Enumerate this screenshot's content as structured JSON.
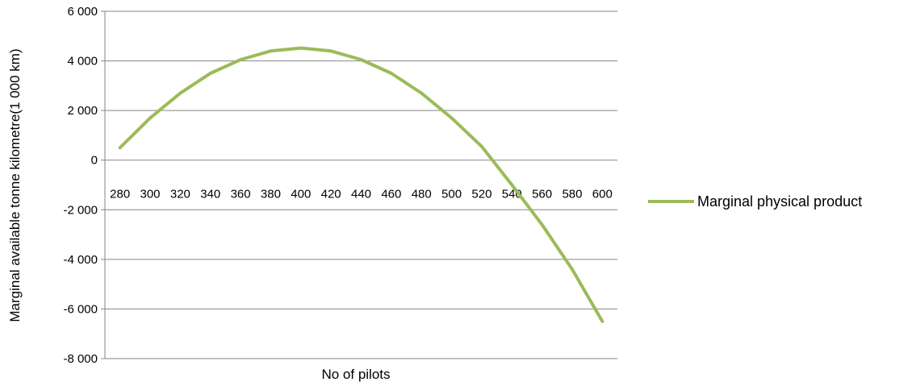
{
  "chart_data": {
    "type": "line",
    "title": "",
    "xlabel": "No of pilots",
    "ylabel": "Marginal available tonne kilometre(1 000 km)",
    "x": [
      280,
      300,
      320,
      340,
      360,
      380,
      400,
      420,
      440,
      460,
      480,
      500,
      520,
      540,
      560,
      580,
      600
    ],
    "y_tick_labels": [
      "6 000",
      "4 000",
      "2 000",
      "0",
      "-2 000",
      "-4 000",
      "-6 000",
      "-8 000"
    ],
    "y_ticks": [
      6000,
      4000,
      2000,
      0,
      -2000,
      -4000,
      -6000,
      -8000
    ],
    "ylim": [
      -8000,
      6000
    ],
    "grid": true,
    "legend_position": "right",
    "series": [
      {
        "name": "Marginal physical product",
        "color": "#9BBB59",
        "values": [
          500,
          1700,
          2700,
          3500,
          4050,
          4400,
          4520,
          4400,
          4050,
          3500,
          2700,
          1700,
          550,
          -1000,
          -2600,
          -4400,
          -6500
        ]
      }
    ]
  }
}
